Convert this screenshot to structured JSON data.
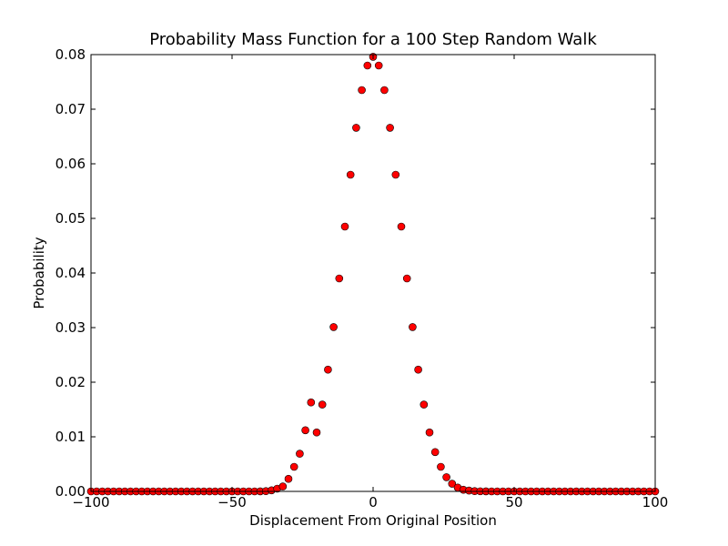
{
  "chart_data": {
    "type": "scatter",
    "title": "Probability Mass Function for a 100 Step Random Walk",
    "xlabel": "Displacement From Original Position",
    "ylabel": "Probability",
    "xlim": [
      -100,
      100
    ],
    "ylim": [
      0,
      0.08
    ],
    "x_ticks": [
      -100,
      -50,
      0,
      50,
      100
    ],
    "x_tick_labels": [
      "−100",
      "−50",
      "0",
      "50",
      "100"
    ],
    "y_ticks": [
      0,
      0.01,
      0.02,
      0.03,
      0.04,
      0.05,
      0.06,
      0.07,
      0.08
    ],
    "y_tick_labels": [
      "0.00",
      "0.01",
      "0.02",
      "0.03",
      "0.04",
      "0.05",
      "0.06",
      "0.07",
      "0.08"
    ],
    "grid": false,
    "marker_color": "#ff0000",
    "marker_edge_color": "#000000",
    "x": [
      -100,
      -98,
      -96,
      -94,
      -92,
      -90,
      -88,
      -86,
      -84,
      -82,
      -80,
      -78,
      -76,
      -74,
      -72,
      -70,
      -68,
      -66,
      -64,
      -62,
      -60,
      -58,
      -56,
      -54,
      -52,
      -50,
      -48,
      -46,
      -44,
      -42,
      -40,
      -38,
      -36,
      -34,
      -32,
      -30,
      -28,
      -26,
      -24,
      -22,
      -20,
      -18,
      -16,
      -14,
      -12,
      -10,
      -8,
      -6,
      -4,
      -2,
      0,
      2,
      4,
      6,
      8,
      10,
      12,
      14,
      16,
      18,
      20,
      22,
      24,
      26,
      28,
      30,
      32,
      34,
      36,
      38,
      40,
      42,
      44,
      46,
      48,
      50,
      52,
      54,
      56,
      58,
      60,
      62,
      64,
      66,
      68,
      70,
      72,
      74,
      76,
      78,
      80,
      82,
      84,
      86,
      88,
      90,
      92,
      94,
      96,
      98,
      100
    ],
    "y": [
      0,
      0,
      0,
      0,
      0,
      0,
      0,
      0,
      0,
      0,
      0,
      0,
      0,
      0,
      0,
      0,
      0,
      0,
      0,
      0,
      0,
      0,
      0,
      0,
      0,
      0,
      0,
      0,
      0,
      0,
      1e-05,
      5e-05,
      0.0002,
      0.0005,
      0.0009,
      0.0023,
      0.0045,
      0.0069,
      0.0112,
      0.0163,
      0.0108,
      0.0159,
      0.0223,
      0.0301,
      0.039,
      0.0485,
      0.058,
      0.0666,
      0.0735,
      0.078,
      0.0796,
      0.078,
      0.0735,
      0.0666,
      0.058,
      0.0485,
      0.039,
      0.0301,
      0.0223,
      0.0159,
      0.0108,
      0.0072,
      0.0045,
      0.0026,
      0.0014,
      0.0007,
      0.0003,
      0.00015,
      5e-05,
      2e-05,
      1e-05,
      0,
      0,
      0,
      0,
      0,
      0,
      0,
      0,
      0,
      0,
      0,
      0,
      0,
      0,
      0,
      0,
      0,
      0,
      0,
      0,
      0,
      0,
      0,
      0,
      0,
      0,
      0,
      0,
      0,
      0
    ]
  }
}
